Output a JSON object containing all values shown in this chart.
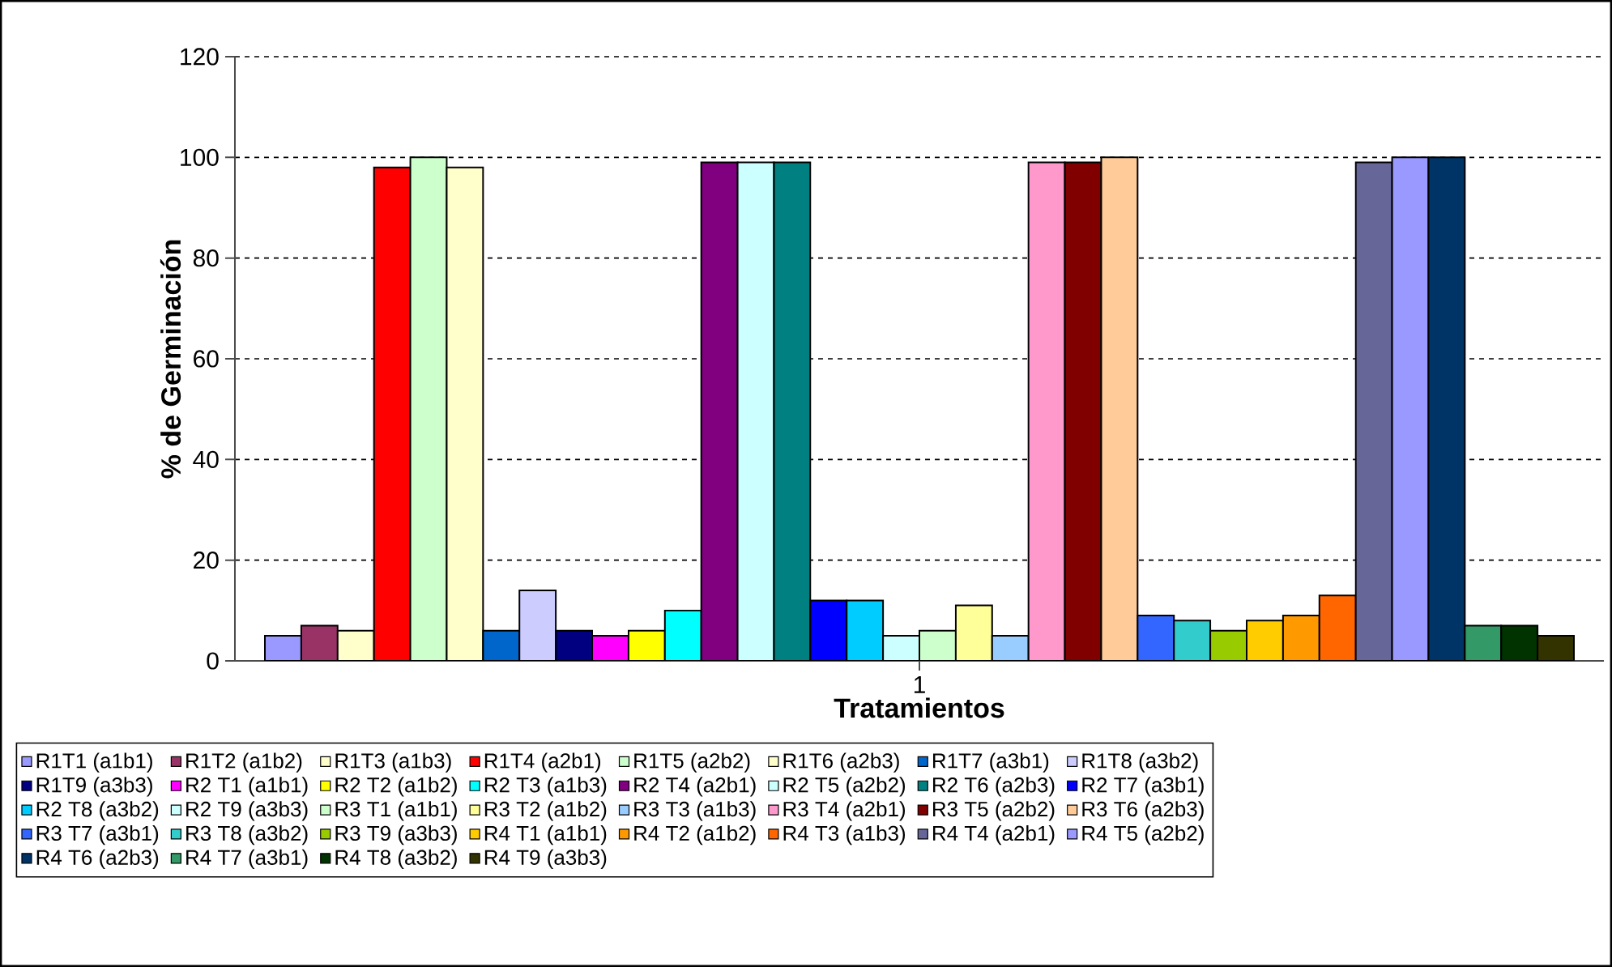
{
  "chart_data": {
    "type": "bar",
    "xlabel": "Tratamientos",
    "ylabel": "% de Germinación",
    "categories": [
      "1"
    ],
    "ylim": [
      0,
      120
    ],
    "yticks": [
      0,
      20,
      40,
      60,
      80,
      100,
      120
    ],
    "grid": "y",
    "legend": "bottom",
    "series": [
      {
        "name": "R1T1 (a1b1)",
        "color": "#9999ff",
        "values": [
          5
        ]
      },
      {
        "name": "R1T2 (a1b2)",
        "color": "#993366",
        "values": [
          7
        ]
      },
      {
        "name": "R1T3 (a1b3)",
        "color": "#ffffcc",
        "values": [
          6
        ]
      },
      {
        "name": "R1T4 (a2b1)",
        "color": "#ff0000",
        "values": [
          98
        ]
      },
      {
        "name": "R1T5 (a2b2)",
        "color": "#ccffcc",
        "values": [
          100
        ]
      },
      {
        "name": "R1T6 (a2b3)",
        "color": "#ffffcc",
        "values": [
          98
        ]
      },
      {
        "name": "R1T7 (a3b1)",
        "color": "#0066cc",
        "values": [
          6
        ]
      },
      {
        "name": "R1T8 (a3b2)",
        "color": "#ccccff",
        "values": [
          14
        ]
      },
      {
        "name": "R1T9 (a3b3)",
        "color": "#000080",
        "values": [
          6
        ]
      },
      {
        "name": "R2 T1 (a1b1)",
        "color": "#ff00ff",
        "values": [
          5
        ]
      },
      {
        "name": "R2 T2 (a1b2)",
        "color": "#ffff00",
        "values": [
          6
        ]
      },
      {
        "name": "R2 T3 (a1b3)",
        "color": "#00ffff",
        "values": [
          10
        ]
      },
      {
        "name": "R2 T4 (a2b1)",
        "color": "#800080",
        "values": [
          99
        ]
      },
      {
        "name": "R2 T5 (a2b2)",
        "color": "#ccffff",
        "values": [
          99
        ]
      },
      {
        "name": "R2 T6 (a2b3)",
        "color": "#008080",
        "values": [
          99
        ]
      },
      {
        "name": "R2 T7 (a3b1)",
        "color": "#0000ff",
        "values": [
          12
        ]
      },
      {
        "name": "R2 T8 (a3b2)",
        "color": "#00ccff",
        "values": [
          12
        ]
      },
      {
        "name": "R2 T9 (a3b3)",
        "color": "#ccffff",
        "values": [
          5
        ]
      },
      {
        "name": "R3 T1 (a1b1)",
        "color": "#ccffcc",
        "values": [
          6
        ]
      },
      {
        "name": "R3 T2 (a1b2)",
        "color": "#ffff99",
        "values": [
          11
        ]
      },
      {
        "name": "R3 T3 (a1b3)",
        "color": "#99ccff",
        "values": [
          5
        ]
      },
      {
        "name": "R3 T4 (a2b1)",
        "color": "#ff99cc",
        "values": [
          99
        ]
      },
      {
        "name": "R3 T5 (a2b2)",
        "color": "#800000",
        "values": [
          99
        ]
      },
      {
        "name": "R3 T6 (a2b3)",
        "color": "#ffcc99",
        "values": [
          100
        ]
      },
      {
        "name": "R3 T7 (a3b1)",
        "color": "#3366ff",
        "values": [
          9
        ]
      },
      {
        "name": "R3 T8 (a3b2)",
        "color": "#33cccc",
        "values": [
          8
        ]
      },
      {
        "name": "R3 T9 (a3b3)",
        "color": "#99cc00",
        "values": [
          6
        ]
      },
      {
        "name": "R4 T1 (a1b1)",
        "color": "#ffcc00",
        "values": [
          8
        ]
      },
      {
        "name": "R4 T2 (a1b2)",
        "color": "#ff9900",
        "values": [
          9
        ]
      },
      {
        "name": "R4 T3 (a1b3)",
        "color": "#ff6600",
        "values": [
          13
        ]
      },
      {
        "name": "R4 T4 (a2b1)",
        "color": "#666699",
        "values": [
          99
        ]
      },
      {
        "name": "R4 T5 (a2b2)",
        "color": "#9999ff",
        "values": [
          100
        ]
      },
      {
        "name": "R4 T6 (a2b3)",
        "color": "#003366",
        "values": [
          100
        ]
      },
      {
        "name": "R4 T7 (a3b1)",
        "color": "#339966",
        "values": [
          7
        ]
      },
      {
        "name": "R4 T8 (a3b2)",
        "color": "#003300",
        "values": [
          7
        ]
      },
      {
        "name": "R4 T9 (a3b3)",
        "color": "#333300",
        "values": [
          5
        ]
      }
    ]
  }
}
